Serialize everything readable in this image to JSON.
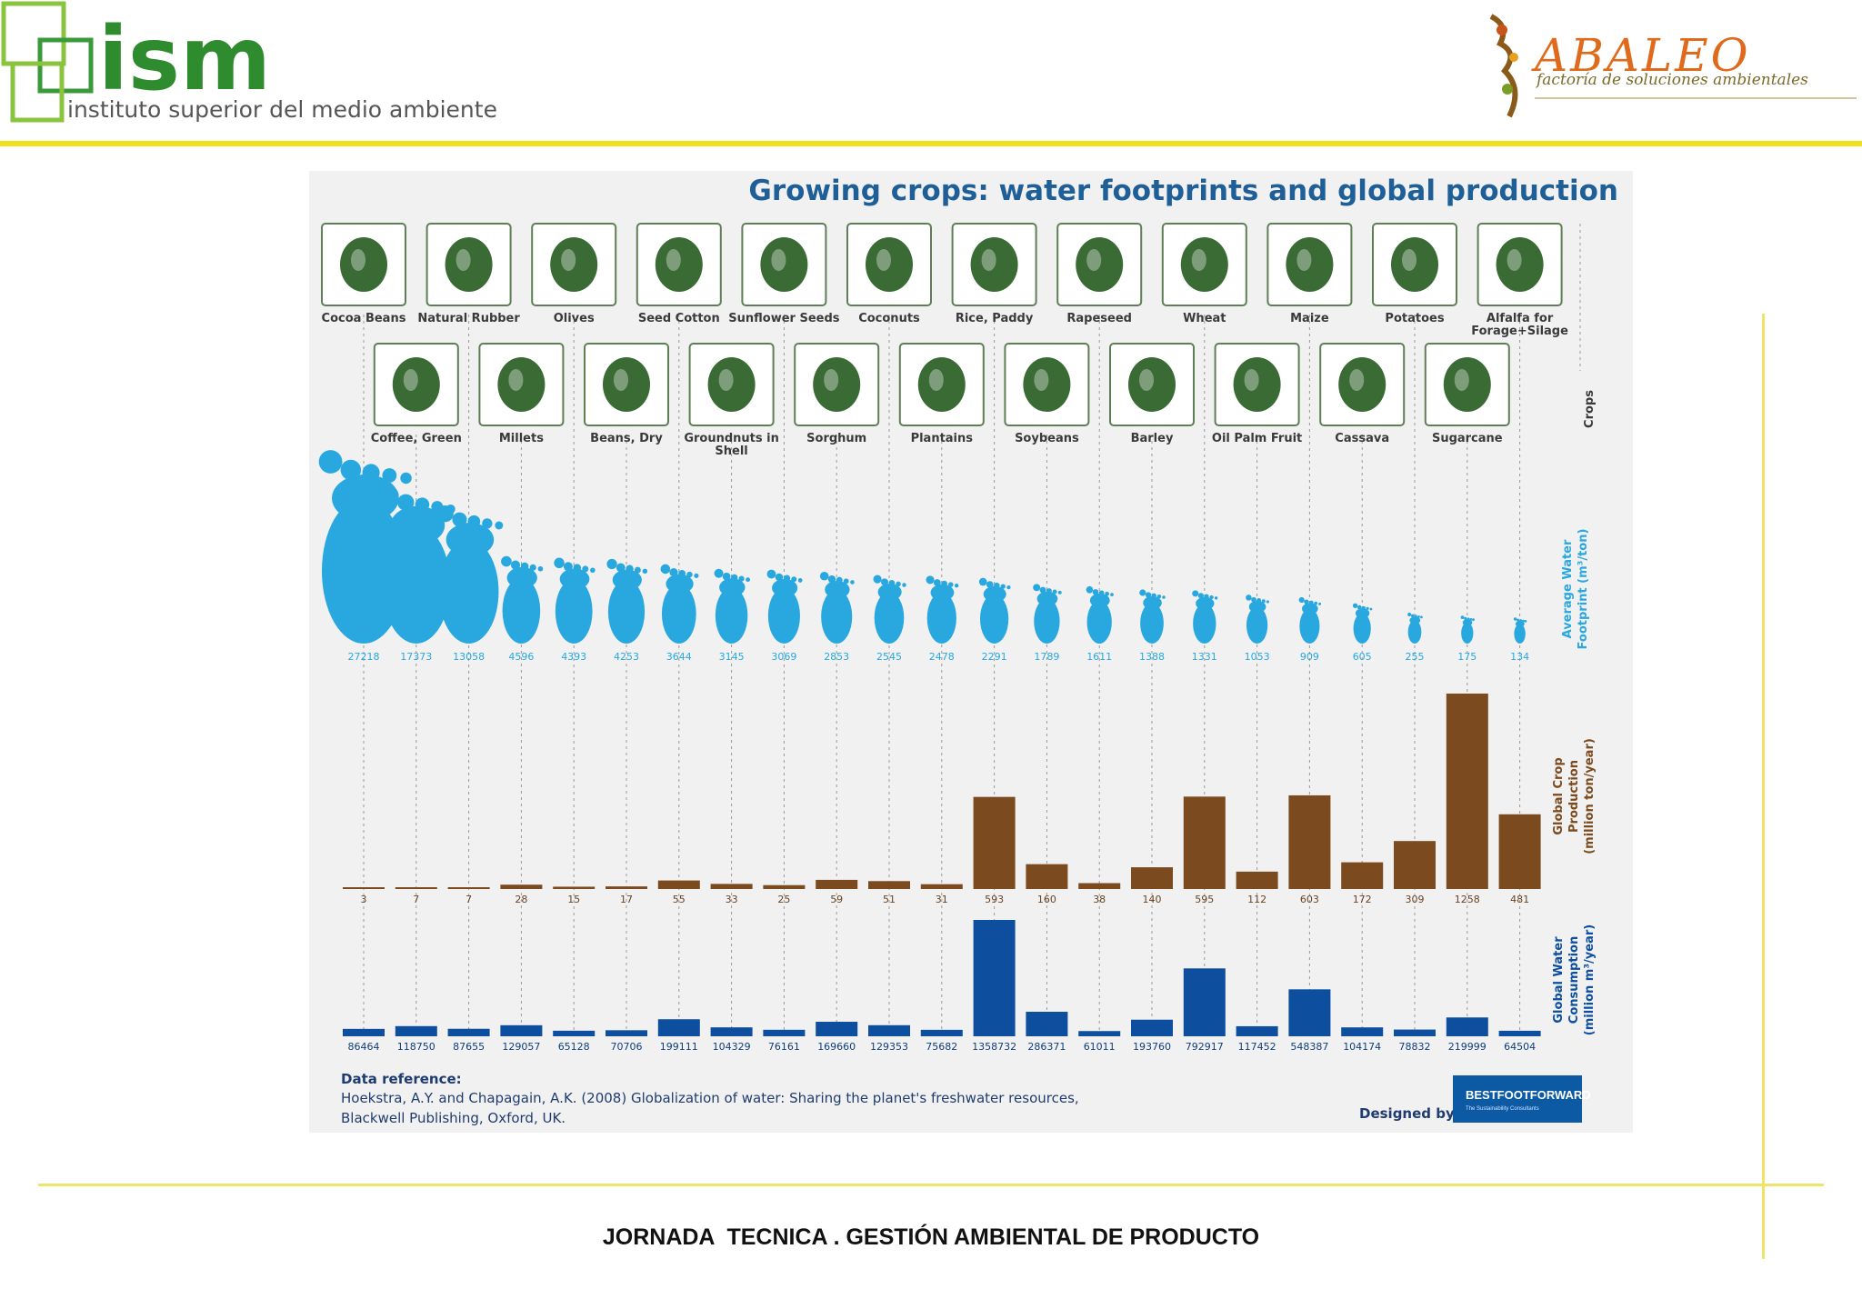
{
  "header": {
    "ism_logo_text": "ism",
    "ism_tagline": "instituto superior del medio ambiente",
    "abaleo_logo_text": "ABALEO",
    "abaleo_tagline": "factoría de soluciones ambientales"
  },
  "footer": {
    "text": "JORNADA  TECNICA . GESTIÓN AMBIENTAL DE PRODUCTO"
  },
  "colors": {
    "header_rule": "#f0e21a",
    "title": "#1f5f97",
    "icon_green": "#3a6b35",
    "footprint": "#29a8e0",
    "production_bar": "#7b4a1f",
    "consumption_bar": "#0d4e9e"
  },
  "chart_data": {
    "type": "bar",
    "title": "Growing crops: water footprints and global production",
    "categories": [
      "Cocoa Beans",
      "Coffee, Green",
      "Natural Rubber",
      "Millets",
      "Olives",
      "Beans, Dry",
      "Seed Cotton",
      "Groundnuts in Shell",
      "Sunflower Seeds",
      "Sorghum",
      "Coconuts",
      "Plantains",
      "Rice, Paddy",
      "Soybeans",
      "Rapeseed",
      "Barley",
      "Wheat",
      "Oil Palm Fruit",
      "Maize",
      "Cassava",
      "Potatoes",
      "Sugarcane",
      "Alfalfa for Forage+Silage"
    ],
    "icons": [
      "cocoa-pod-icon",
      "coffee-plant-icon",
      "rubber-tap-icon",
      "millet-icon",
      "olives-icon",
      "beans-icon",
      "cotton-boll-icon",
      "peanut-icon",
      "sunflower-icon",
      "sorghum-icon",
      "coconut-icon",
      "plantain-icon",
      "rice-paddy-icon",
      "soybean-icon",
      "rapeseed-icon",
      "barley-icon",
      "wheat-icon",
      "oil-palm-fruit-icon",
      "maize-icon",
      "cassava-icon",
      "potatoes-icon",
      "sugarcane-icon",
      "alfalfa-icon"
    ],
    "series": [
      {
        "name": "Average Water Footprint (m³/ton)",
        "mark": "footprint",
        "values": [
          27218,
          17373,
          13058,
          4596,
          4393,
          4253,
          3644,
          3145,
          3069,
          2853,
          2545,
          2478,
          2291,
          1789,
          1611,
          1388,
          1331,
          1053,
          909,
          605,
          255,
          175,
          134
        ]
      },
      {
        "name": "Global Crop Production (million ton/year)",
        "mark": "bar",
        "values": [
          3,
          7,
          7,
          28,
          15,
          17,
          55,
          33,
          25,
          59,
          51,
          31,
          593,
          160,
          38,
          140,
          595,
          112,
          603,
          172,
          309,
          1258,
          481
        ]
      },
      {
        "name": "Global Water Consumption (million m³/year)",
        "mark": "bar",
        "values": [
          86464,
          118750,
          87655,
          129057,
          65128,
          70706,
          199111,
          104329,
          76161,
          169660,
          129353,
          75682,
          1358732,
          286371,
          61011,
          193760,
          792917,
          117452,
          548387,
          104174,
          78832,
          219999,
          64504
        ]
      }
    ],
    "row_labels": [
      "Crops",
      "Average Water Footprint (m³/ton)",
      "Global Crop Production (million ton/year)",
      "Global Water Consumption (million m³/year)"
    ],
    "legend": "right",
    "grid": false
  },
  "reference": {
    "heading": "Data reference:",
    "line1": "Hoekstra, A.Y. and Chapagain, A.K. (2008) Globalization of water: Sharing the planet's freshwater resources,",
    "line2": "Blackwell Publishing, Oxford, UK.",
    "designed_by": "Designed by:",
    "designer": "BESTFOOTFORWARD",
    "designer_tagline": "The Sustainability Consultants"
  }
}
